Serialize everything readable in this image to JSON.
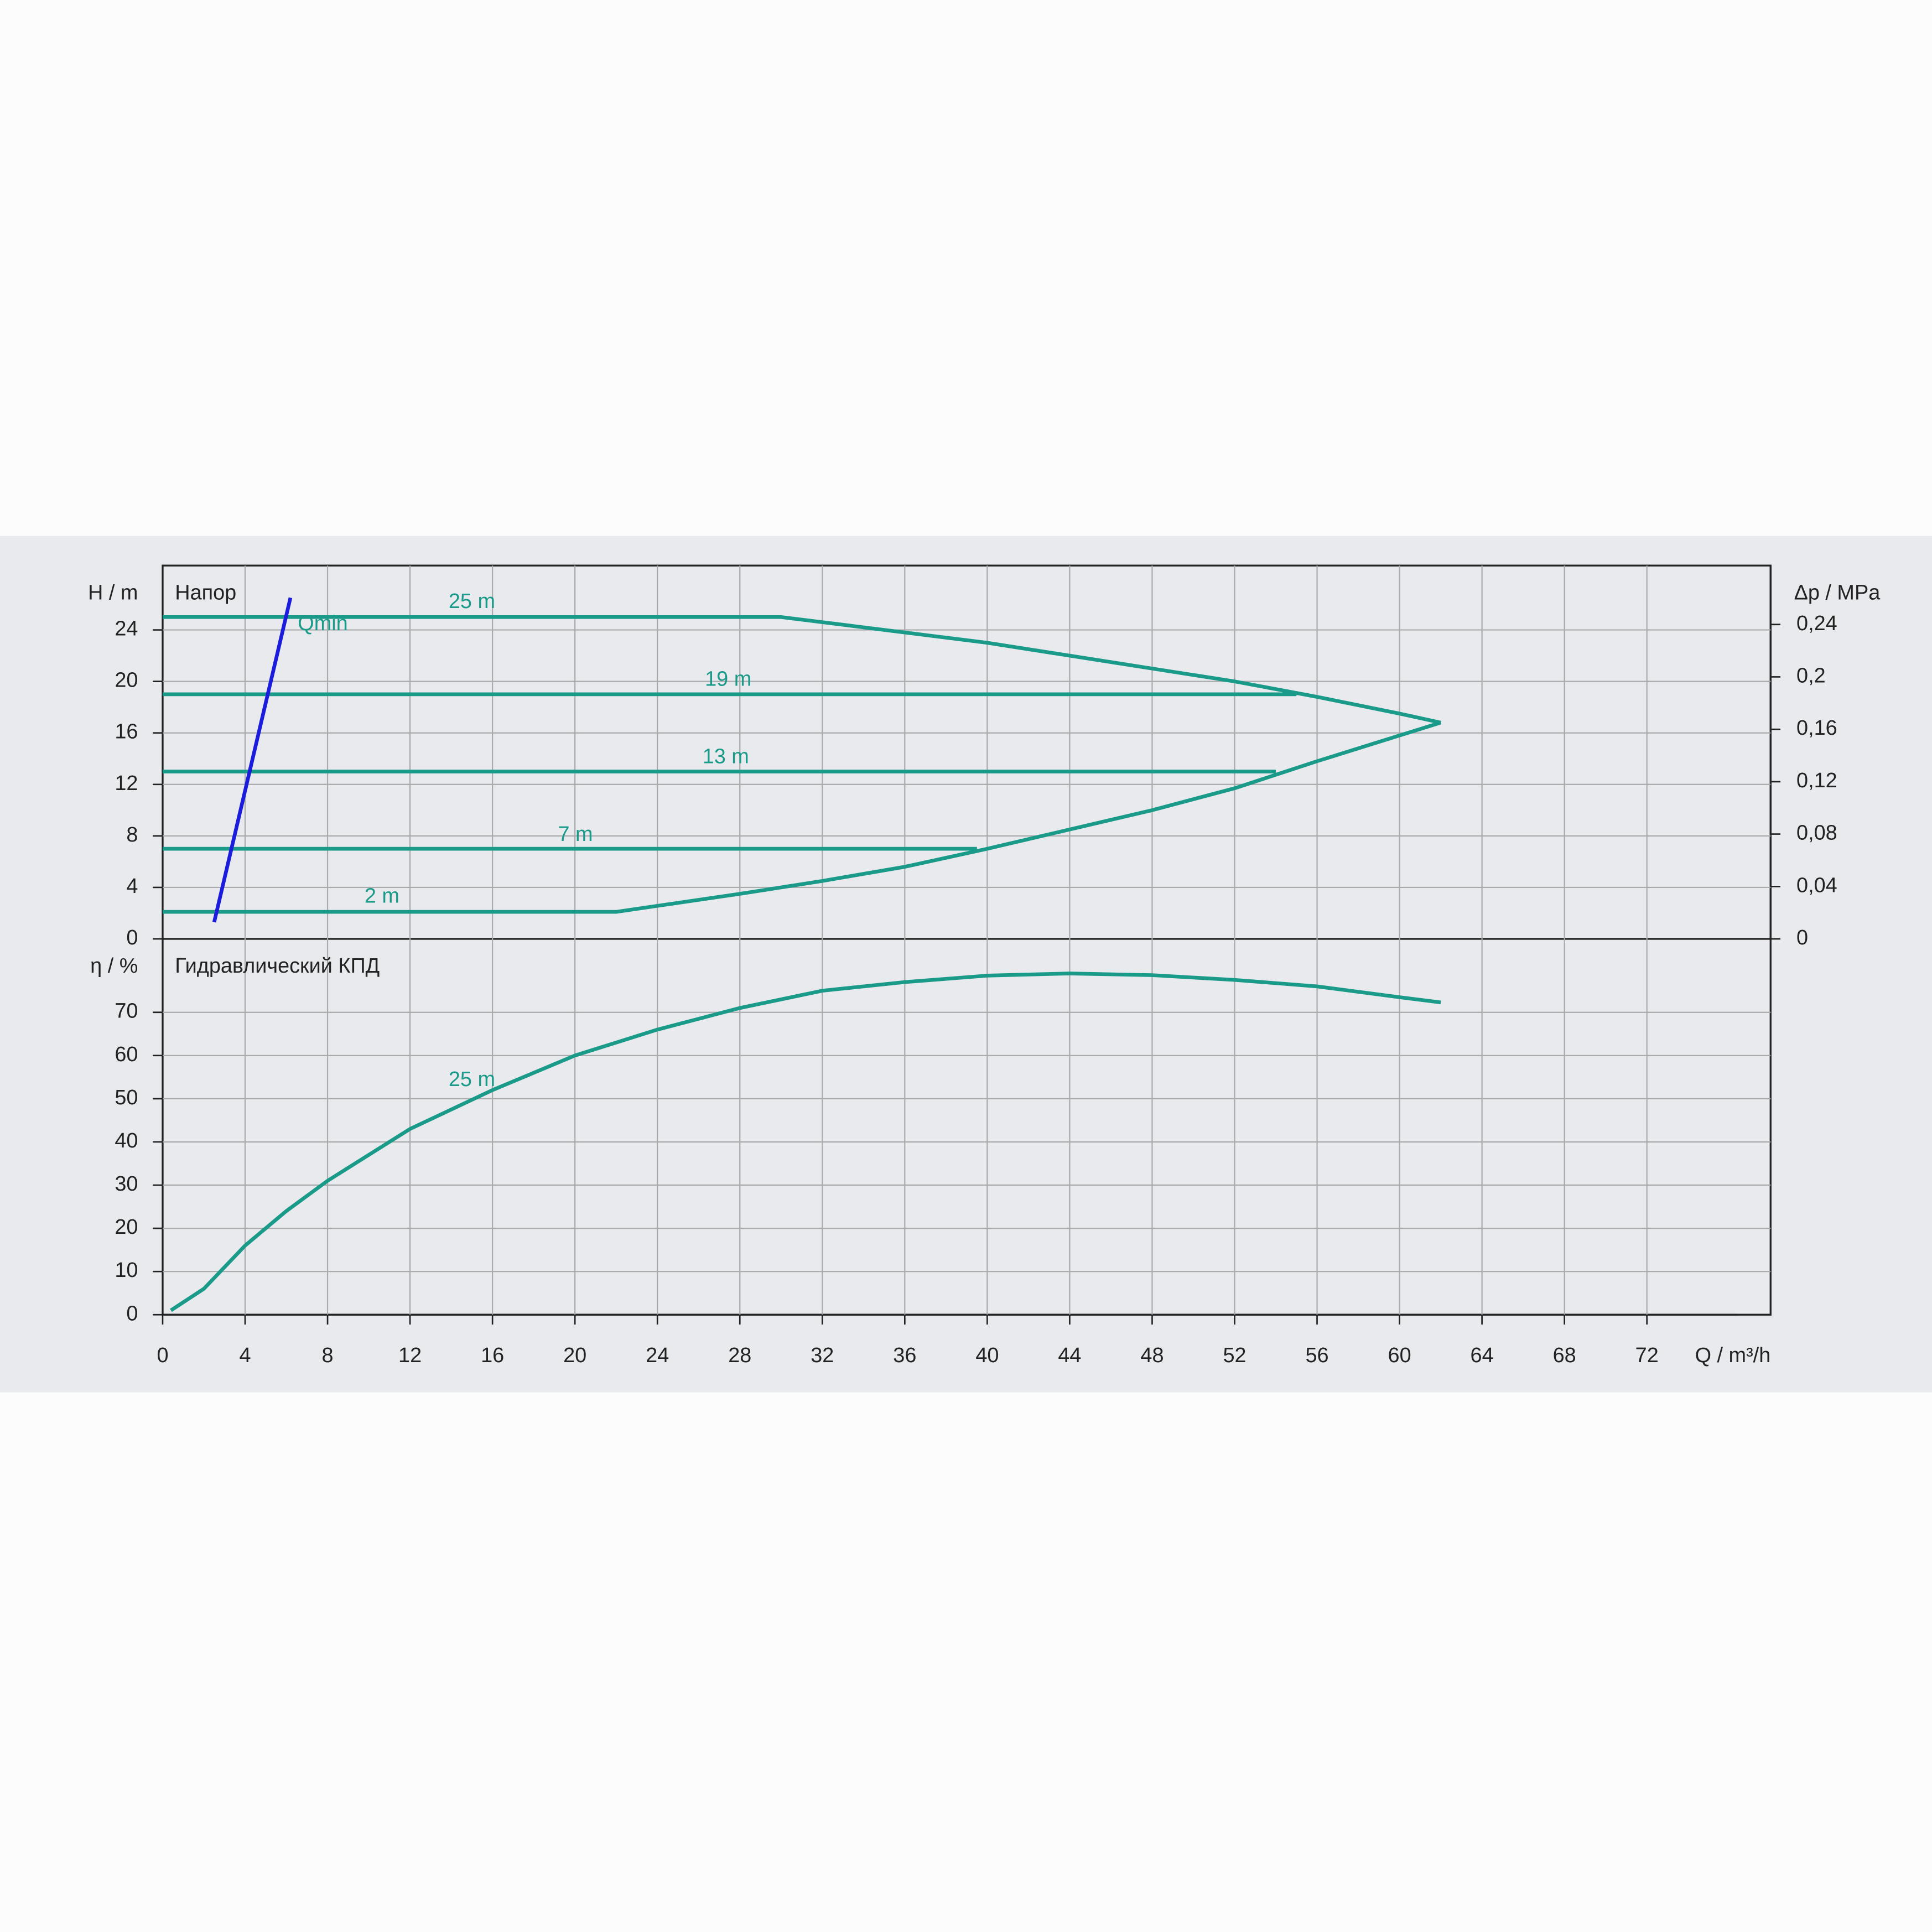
{
  "chart_data": [
    {
      "type": "line",
      "title": "Напор",
      "ylabel": "H / m",
      "y2label": "Δp / MPa",
      "ylim": [
        0,
        29
      ],
      "yticks": [
        0,
        4,
        8,
        12,
        16,
        20,
        24
      ],
      "y2lim": [
        0,
        0.285
      ],
      "y2ticks": [
        {
          "value": 0,
          "label": "0"
        },
        {
          "value": 0.04,
          "label": "0,04"
        },
        {
          "value": 0.08,
          "label": "0,08"
        },
        {
          "value": 0.12,
          "label": "0,12"
        },
        {
          "value": 0.16,
          "label": "0,16"
        },
        {
          "value": 0.2,
          "label": "0,2"
        },
        {
          "value": 0.24,
          "label": "0,24"
        }
      ],
      "grid": true,
      "series": [
        {
          "name": "25 m",
          "color": "#1a9a88",
          "x": [
            0,
            30,
            34,
            40,
            44,
            48,
            52,
            56,
            60,
            62
          ],
          "values": [
            25,
            25,
            24.2,
            23,
            22,
            21,
            20,
            18.8,
            17.5,
            16.8
          ]
        },
        {
          "name": "19 m",
          "color": "#1a9a88",
          "x": [
            0,
            55
          ],
          "values": [
            19,
            19
          ]
        },
        {
          "name": "13 m",
          "color": "#1a9a88",
          "x": [
            0,
            54
          ],
          "values": [
            13,
            13
          ]
        },
        {
          "name": "7 m",
          "color": "#1a9a88",
          "x": [
            0,
            39.5
          ],
          "values": [
            7,
            7
          ]
        },
        {
          "name": "2 m",
          "color": "#1a9a88",
          "x": [
            0,
            22,
            28,
            32,
            36,
            40,
            44,
            48,
            52,
            56,
            60,
            62
          ],
          "values": [
            2.1,
            2.1,
            3.5,
            4.5,
            5.6,
            7,
            8.5,
            10,
            11.7,
            13.8,
            15.8,
            16.8
          ]
        },
        {
          "name": "Qmin",
          "color": "#1c1cdc",
          "x": [
            2.5,
            6.2
          ],
          "values": [
            1.3,
            26.5
          ]
        }
      ]
    },
    {
      "type": "line",
      "title": "Гидравлический КПД",
      "ylabel": "η / %",
      "xlabel": "Q / m³/h",
      "xlim": [
        0,
        78
      ],
      "xticks": [
        0,
        4,
        8,
        12,
        16,
        20,
        24,
        28,
        32,
        36,
        40,
        44,
        48,
        52,
        56,
        60,
        64,
        68,
        72
      ],
      "ylim": [
        0,
        87
      ],
      "yticks": [
        0,
        10,
        20,
        30,
        40,
        50,
        60,
        70
      ],
      "grid": true,
      "series": [
        {
          "name": "25 m",
          "color": "#1a9a88",
          "x": [
            0.4,
            2,
            4,
            6,
            8,
            12,
            16,
            20,
            24,
            28,
            32,
            36,
            40,
            44,
            48,
            52,
            56,
            60,
            62
          ],
          "values": [
            1,
            6,
            16,
            24,
            31,
            43,
            52,
            60,
            66,
            71,
            75,
            77,
            78.5,
            79,
            78.6,
            77.5,
            76,
            73.5,
            72.3
          ]
        }
      ]
    }
  ]
}
